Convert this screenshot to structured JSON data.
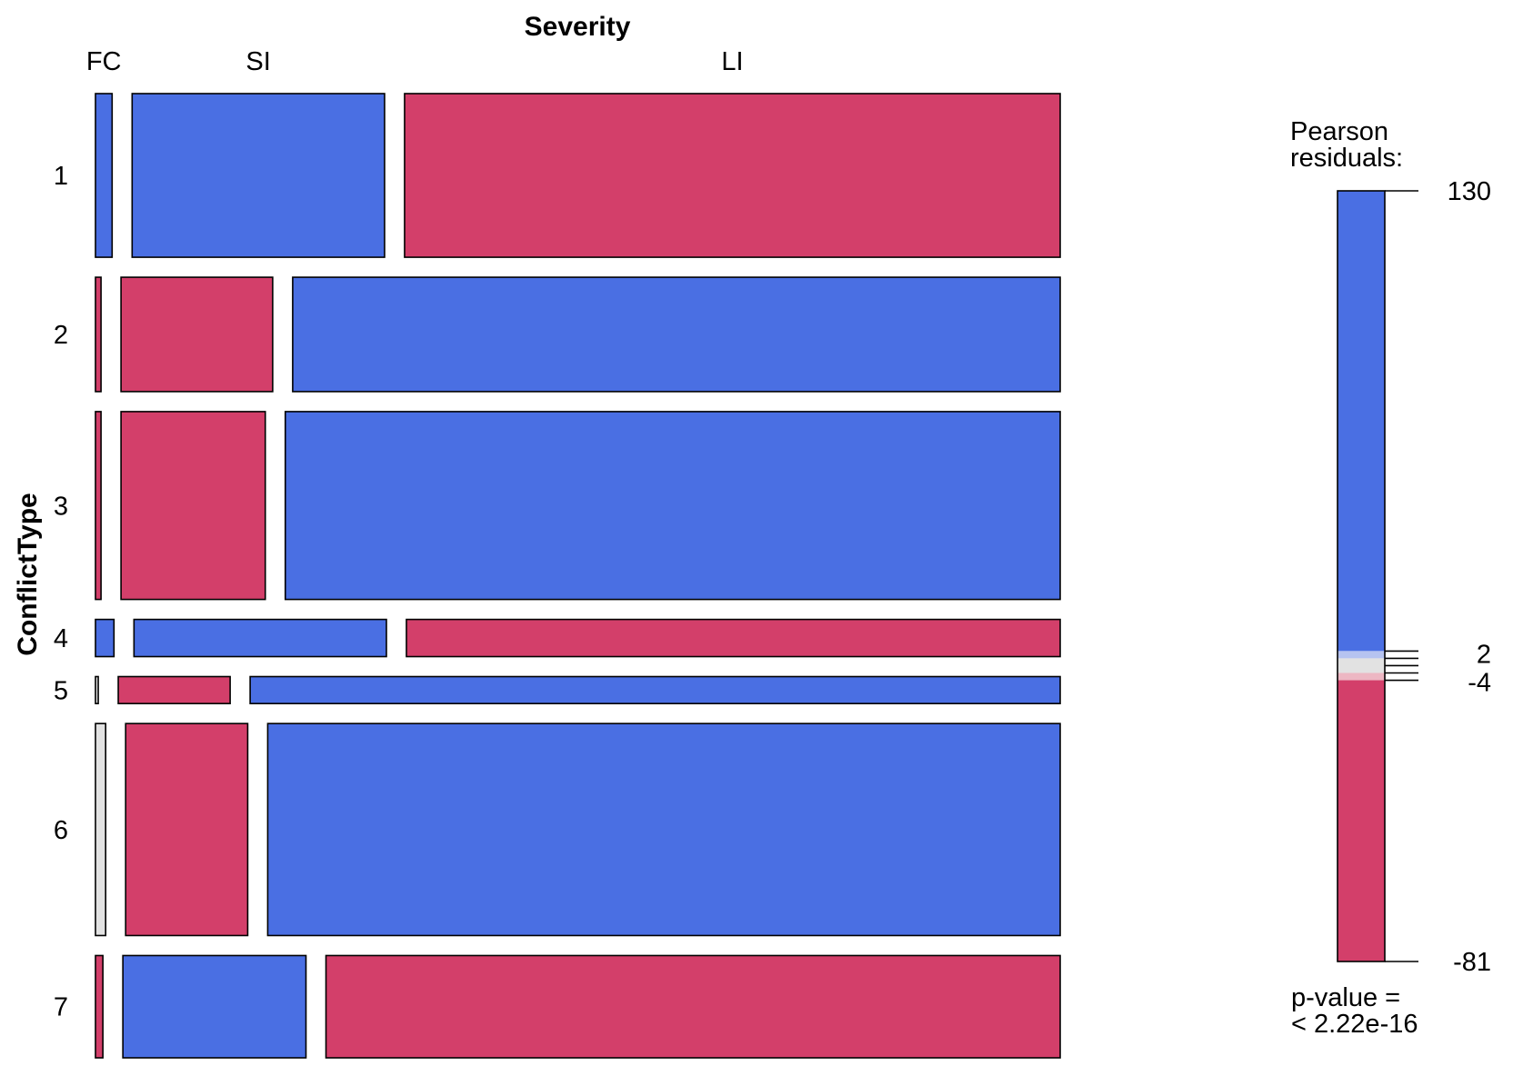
{
  "chart_data": {
    "type": "mosaic",
    "title": "",
    "column_variable": "Severity",
    "row_variable": "ConflictType",
    "columns": [
      "FC",
      "SI",
      "LI"
    ],
    "rows": [
      "1",
      "2",
      "3",
      "4",
      "5",
      "6",
      "7"
    ],
    "row_proportions": [
      0.176,
      0.123,
      0.202,
      0.04,
      0.029,
      0.228,
      0.11
    ],
    "cell_proportions": [
      [
        0.018,
        0.273,
        0.709
      ],
      [
        0.006,
        0.164,
        0.83
      ],
      [
        0.006,
        0.156,
        0.838
      ],
      [
        0.02,
        0.273,
        0.707
      ],
      [
        0.003,
        0.121,
        0.876
      ],
      [
        0.011,
        0.132,
        0.857
      ],
      [
        0.008,
        0.198,
        0.794
      ]
    ],
    "residual_sign": [
      [
        "positive",
        "positive",
        "negative"
      ],
      [
        "negative",
        "negative",
        "positive"
      ],
      [
        "negative",
        "negative",
        "positive"
      ],
      [
        "positive",
        "positive",
        "negative"
      ],
      [
        "neutral",
        "negative",
        "positive"
      ],
      [
        "neutral",
        "negative",
        "positive"
      ],
      [
        "negative",
        "positive",
        "negative"
      ]
    ],
    "legend": {
      "title": "Pearson\nresiduals:",
      "max": 130,
      "min": -81,
      "tick_labels": [
        "130",
        "2",
        "-4",
        "-81"
      ],
      "tick_values": [
        130,
        2,
        -4,
        -81
      ],
      "minor_tick_values": [
        4,
        2,
        0,
        -2,
        -4
      ],
      "p_value_label": "p-value =\n< 2.22e-16"
    }
  },
  "colors": {
    "positive": "#4a6fe3",
    "negative": "#d33f6a",
    "neutral": "#e2e2e2",
    "positive_light": "#b6c3f0",
    "negative_light": "#edb7c3"
  }
}
